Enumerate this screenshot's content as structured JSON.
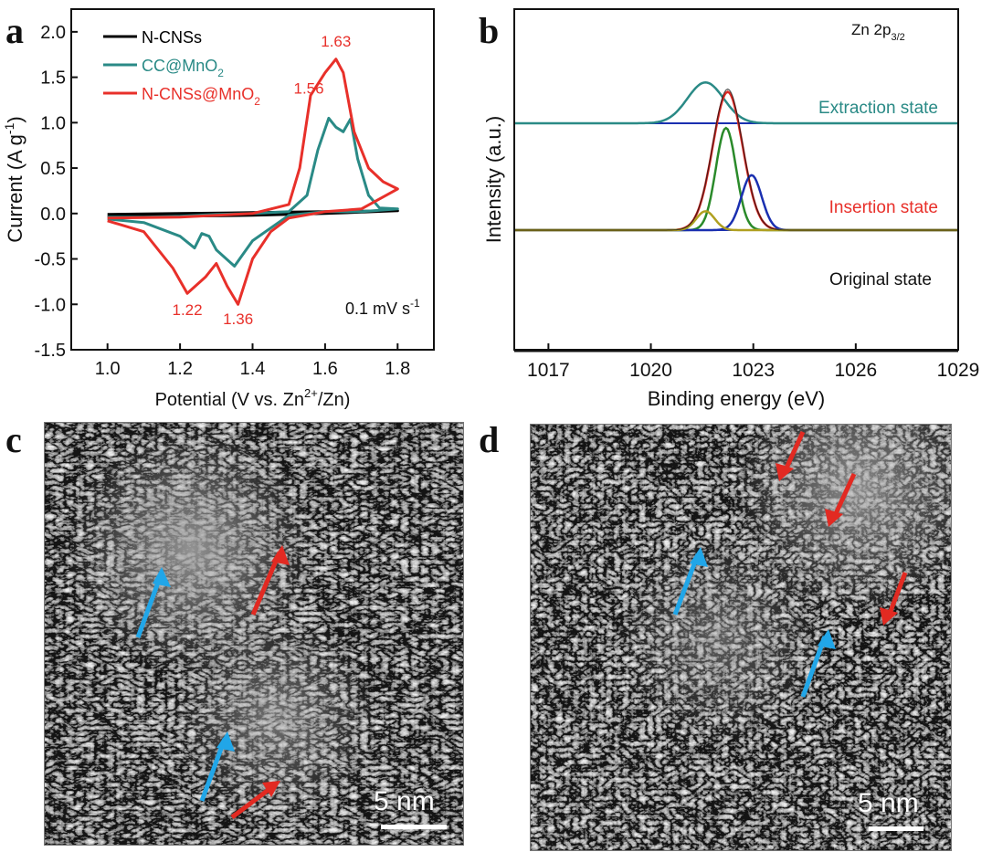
{
  "panels": {
    "a": {
      "letter": "a"
    },
    "b": {
      "letter": "b"
    },
    "c": {
      "letter": "c",
      "scalebar": "5 nm"
    },
    "d": {
      "letter": "d",
      "scalebar": "5 nm"
    }
  },
  "chart_data": [
    {
      "type": "line",
      "title": "",
      "xlabel_main": "Potential (V vs. Zn",
      "xlabel_sup": "2+",
      "xlabel_tail": "/Zn)",
      "ylabel_main": "Current (A g",
      "ylabel_sup": "-1",
      "ylabel_tail": ")",
      "xlim": [
        0.9,
        1.9
      ],
      "ylim": [
        -1.5,
        2.25
      ],
      "xticks": [
        "1.0",
        "1.2",
        "1.4",
        "1.6",
        "1.8"
      ],
      "xtick_values": [
        1.0,
        1.2,
        1.4,
        1.6,
        1.8
      ],
      "yticks": [
        "-1.5",
        "-1.0",
        "-0.5",
        "0.0",
        "0.5",
        "1.0",
        "1.5",
        "2.0"
      ],
      "ytick_values": [
        -1.5,
        -1.0,
        -0.5,
        0.0,
        0.5,
        1.0,
        1.5,
        2.0
      ],
      "legend": [
        {
          "label": "N-CNSs",
          "sub": "",
          "color": "#000000"
        },
        {
          "label": "CC@MnO",
          "sub": "2",
          "color": "#2a8a86"
        },
        {
          "label": "N-CNSs@MnO",
          "sub": "2",
          "color": "#e8302a"
        }
      ],
      "annotations": [
        {
          "text": "1.63",
          "x": 1.63,
          "y": 1.84,
          "color": "#e8302a"
        },
        {
          "text": "1.56",
          "x": 1.555,
          "y": 1.32,
          "color": "#e8302a"
        },
        {
          "text": "1.22",
          "x": 1.22,
          "y": -1.12,
          "color": "#e8302a"
        },
        {
          "text": "1.36",
          "x": 1.36,
          "y": -1.22,
          "color": "#e8302a"
        }
      ],
      "rate_label_main": "0.1 mV s",
      "rate_label_sup": "-1",
      "series": [
        {
          "name": "N-CNSs",
          "color": "#000000",
          "x": [
            1.0,
            1.2,
            1.4,
            1.6,
            1.8,
            1.6,
            1.4,
            1.2,
            1.0
          ],
          "y": [
            -0.01,
            0.0,
            0.01,
            0.02,
            0.03,
            0.0,
            -0.02,
            -0.03,
            -0.03
          ]
        },
        {
          "name": "CC@MnO2",
          "color": "#2a8a86",
          "x": [
            1.0,
            1.1,
            1.2,
            1.3,
            1.4,
            1.5,
            1.55,
            1.58,
            1.61,
            1.63,
            1.65,
            1.67,
            1.69,
            1.72,
            1.75,
            1.8,
            1.7,
            1.6,
            1.5,
            1.4,
            1.35,
            1.3,
            1.28,
            1.26,
            1.24,
            1.2,
            1.1,
            1.0
          ],
          "y": [
            -0.04,
            -0.04,
            -0.03,
            -0.01,
            0.0,
            0.02,
            0.2,
            0.7,
            1.05,
            0.95,
            0.9,
            1.04,
            0.6,
            0.2,
            0.06,
            0.05,
            0.02,
            0.02,
            -0.02,
            -0.3,
            -0.58,
            -0.4,
            -0.25,
            -0.22,
            -0.38,
            -0.25,
            -0.1,
            -0.06
          ]
        },
        {
          "name": "N-CNSs@MnO2",
          "color": "#e8302a",
          "x": [
            1.0,
            1.2,
            1.4,
            1.5,
            1.53,
            1.56,
            1.6,
            1.63,
            1.65,
            1.68,
            1.72,
            1.76,
            1.8,
            1.7,
            1.6,
            1.5,
            1.45,
            1.4,
            1.36,
            1.33,
            1.3,
            1.27,
            1.22,
            1.18,
            1.1,
            1.0
          ],
          "y": [
            -0.05,
            -0.04,
            0.0,
            0.1,
            0.5,
            1.3,
            1.55,
            1.7,
            1.55,
            0.9,
            0.5,
            0.35,
            0.27,
            0.05,
            0.02,
            -0.05,
            -0.2,
            -0.5,
            -1.0,
            -0.8,
            -0.55,
            -0.7,
            -0.88,
            -0.6,
            -0.2,
            -0.08
          ]
        }
      ]
    },
    {
      "type": "line",
      "title": "",
      "corner_label_main": "Zn 2p",
      "corner_label_sub": "3/2",
      "xlabel": "Binding energy (eV)",
      "ylabel": "Intensity (a.u.)",
      "xlim": [
        1016,
        1029
      ],
      "xticks": [
        "1017",
        "1020",
        "1023",
        "1026",
        "1029"
      ],
      "xtick_values": [
        1017,
        1020,
        1023,
        1026,
        1029
      ],
      "state_labels": [
        {
          "text": "Extraction state",
          "color": "#2a8a86"
        },
        {
          "text": "Insertion state",
          "color": "#e8302a"
        },
        {
          "text": "Original state",
          "color": "#111111"
        }
      ],
      "states": [
        {
          "name": "Extraction state",
          "baseline": 0.9,
          "peaks": [
            {
              "center": 1021.6,
              "height": 0.26,
              "width": 0.75,
              "color": "#2a8a86"
            }
          ],
          "baseline_color": "#1a2fb0"
        },
        {
          "name": "Insertion state",
          "baseline": 0.22,
          "peaks": [
            {
              "center": 1022.25,
              "height": 0.88,
              "width": 0.62,
              "color": "#d92a24"
            },
            {
              "center": 1022.2,
              "height": 0.65,
              "width": 0.42,
              "color": "#2a8a2a"
            },
            {
              "center": 1022.95,
              "height": 0.35,
              "width": 0.42,
              "color": "#1a2fb0"
            },
            {
              "center": 1021.6,
              "height": 0.12,
              "width": 0.38,
              "color": "#b0a020"
            }
          ],
          "baseline_color": "#1a2fb0"
        },
        {
          "name": "Original state",
          "baseline": -0.55,
          "peaks": [],
          "baseline_color": "#111111"
        }
      ]
    }
  ]
}
